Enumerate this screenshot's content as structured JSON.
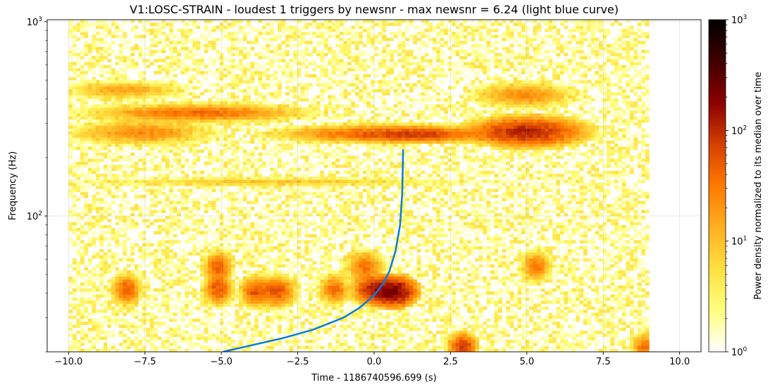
{
  "chart_data": {
    "type": "heatmap",
    "title": "V1:LOSC-STRAIN - loudest 1 triggers by newsnr - max newsnr = 6.24 (light blue curve)",
    "xlabel": "Time - 1186740596.699 (s)",
    "ylabel": "Frequency (Hz)",
    "colorbar_label": "Power density normalized to its median over time",
    "x_scale": "linear",
    "y_scale": "log",
    "colorbar_scale": "log",
    "xlim": [
      -10.7,
      10.7
    ],
    "ylim": [
      20,
      1024
    ],
    "clim": [
      1,
      1000
    ],
    "x_ticks": [
      {
        "value": -10.0,
        "label": "−10.0"
      },
      {
        "value": -7.5,
        "label": "−7.5"
      },
      {
        "value": -5.0,
        "label": "−5.0"
      },
      {
        "value": -2.5,
        "label": "−2.5"
      },
      {
        "value": 0.0,
        "label": "0.0"
      },
      {
        "value": 2.5,
        "label": "2.5"
      },
      {
        "value": 5.0,
        "label": "5.0"
      },
      {
        "value": 7.5,
        "label": "7.5"
      },
      {
        "value": 10.0,
        "label": "10.0"
      }
    ],
    "y_ticks": [
      {
        "value": 100,
        "base": "10",
        "exp": "2"
      },
      {
        "value": 1000,
        "base": "10",
        "exp": "3"
      }
    ],
    "colorbar_ticks": [
      {
        "value": 1,
        "base": "10",
        "exp": "0"
      },
      {
        "value": 10,
        "base": "10",
        "exp": "1"
      },
      {
        "value": 100,
        "base": "10",
        "exp": "2"
      },
      {
        "value": 1000,
        "base": "10",
        "exp": "3"
      }
    ],
    "colormap": [
      "#ffffff",
      "#ffff80",
      "#ffe040",
      "#ffb020",
      "#ff7a00",
      "#d44000",
      "#8b0000",
      "#400000",
      "#000000"
    ],
    "data_time_range": [
      -10.0,
      9.0
    ],
    "grid": true,
    "trigger_track": {
      "color": "#0a7ae0",
      "t_end": 0.95,
      "f_end": 220,
      "points": [
        {
          "t": -4.95,
          "f": 20.0
        },
        {
          "t": -3.0,
          "f": 23.5
        },
        {
          "t": -2.0,
          "f": 26.0
        },
        {
          "t": -1.0,
          "f": 30.0
        },
        {
          "t": -0.5,
          "f": 33.5
        },
        {
          "t": 0.0,
          "f": 39.0
        },
        {
          "t": 0.3,
          "f": 45.0
        },
        {
          "t": 0.5,
          "f": 52.0
        },
        {
          "t": 0.7,
          "f": 66.0
        },
        {
          "t": 0.85,
          "f": 90.0
        },
        {
          "t": 0.92,
          "f": 130.0
        },
        {
          "t": 0.95,
          "f": 220.0
        }
      ]
    },
    "hot_spots": [
      {
        "t": 0.55,
        "f": 265,
        "dt": 2.2,
        "df": 0.03,
        "power": 60
      },
      {
        "t": 1.6,
        "f": 262,
        "dt": 1.0,
        "df": 0.025,
        "power": 40
      },
      {
        "t": 5.0,
        "f": 272,
        "dt": 1.2,
        "df": 0.05,
        "power": 120
      },
      {
        "t": 4.9,
        "f": 420,
        "dt": 1.0,
        "df": 0.04,
        "power": 25
      },
      {
        "t": -5.8,
        "f": 340,
        "dt": 2.2,
        "df": 0.03,
        "power": 40
      },
      {
        "t": -7.6,
        "f": 270,
        "dt": 1.4,
        "df": 0.04,
        "power": 25
      },
      {
        "t": -8.2,
        "f": 445,
        "dt": 1.2,
        "df": 0.03,
        "power": 15
      },
      {
        "t": 0.6,
        "f": 41,
        "dt": 0.5,
        "df": 0.05,
        "power": 250
      },
      {
        "t": -0.1,
        "f": 42,
        "dt": 0.4,
        "df": 0.05,
        "power": 90
      },
      {
        "t": -3.2,
        "f": 41,
        "dt": 0.4,
        "df": 0.05,
        "power": 60
      },
      {
        "t": -3.9,
        "f": 41,
        "dt": 0.3,
        "df": 0.05,
        "power": 55
      },
      {
        "t": -5.1,
        "f": 42,
        "dt": 0.3,
        "df": 0.05,
        "power": 60
      },
      {
        "t": -8.1,
        "f": 42,
        "dt": 0.3,
        "df": 0.05,
        "power": 50
      },
      {
        "t": -1.3,
        "f": 42,
        "dt": 0.3,
        "df": 0.05,
        "power": 40
      },
      {
        "t": -5.1,
        "f": 55,
        "dt": 0.3,
        "df": 0.05,
        "power": 45
      },
      {
        "t": -0.3,
        "f": 55,
        "dt": 0.4,
        "df": 0.05,
        "power": 35
      },
      {
        "t": 5.3,
        "f": 55,
        "dt": 0.3,
        "df": 0.05,
        "power": 35
      },
      {
        "t": 2.9,
        "f": 21,
        "dt": 0.3,
        "df": 0.05,
        "power": 90
      },
      {
        "t": 8.85,
        "f": 21,
        "dt": 0.25,
        "df": 0.05,
        "power": 40
      },
      {
        "t": -3.3,
        "f": 150,
        "dt": 4.0,
        "df": 0.015,
        "power": 8
      }
    ]
  }
}
